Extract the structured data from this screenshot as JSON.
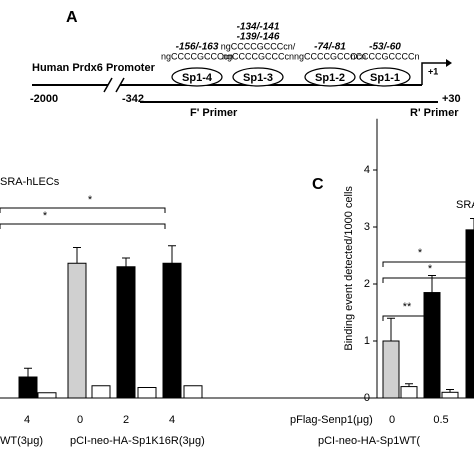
{
  "panel_a": {
    "letter": "A",
    "promoter": "Human Prdx6 Promoter",
    "start": "-2000",
    "break": "-342",
    "sites": [
      {
        "name": "Sp1-4",
        "pos": [
          "-156/-163"
        ],
        "seq": [
          "ngCCCCGCCCcn"
        ]
      },
      {
        "name": "Sp1-3",
        "pos": [
          "-134/-141",
          "-139/-146"
        ],
        "seq": [
          "ngCCCCGCCCcn/",
          "ngCCCCGCCCcn"
        ]
      },
      {
        "name": "Sp1-2",
        "pos": [
          "-74/-81"
        ],
        "seq": [
          "ngCCCCGCCCcn"
        ]
      },
      {
        "name": "Sp1-1",
        "pos": [
          "-53/-60"
        ],
        "seq": [
          "nCCCCGCCCCn"
        ]
      }
    ],
    "tss": "+1",
    "end": "+30",
    "f_primer": "F' Primer",
    "r_primer": "R' Primer"
  },
  "chart_data": [
    {
      "type": "bar",
      "title": "SRA-hLECs",
      "categories": [
        null,
        "4",
        "0",
        "2",
        "4"
      ],
      "groups": [
        "WT(3μg)",
        "pCI-neo-HA-Sp1K16R(3μg)"
      ],
      "ylim": [
        0,
        4.5
      ],
      "series": [
        {
          "colors": [
            null,
            "#000000",
            "#d0d0d0",
            "#000000",
            "#000000"
          ],
          "values": [
            null,
            0.6,
            3.85,
            3.75,
            3.85
          ],
          "errors": [
            null,
            0.25,
            0.45,
            0.25,
            0.5
          ]
        },
        {
          "color": "#ffffff",
          "values": [
            0.3,
            0.15,
            0.35,
            0.3,
            0.35
          ],
          "errors": [
            null,
            null,
            null,
            null,
            null
          ]
        }
      ],
      "annotations": [
        "*",
        "*"
      ]
    },
    {
      "type": "bar",
      "letter": "C",
      "title": "SRA",
      "ylabel": "Binding event detected/1000 cells",
      "xlabel": "pFlag-Senp1(μg)",
      "categories": [
        "0",
        "0.5",
        null
      ],
      "groups": [
        "pCI-neo-HA-Sp1WT("
      ],
      "ylim": [
        0,
        4.9
      ],
      "yticks": [
        0,
        1,
        2,
        3,
        4
      ],
      "series": [
        {
          "colors": [
            "#d0d0d0",
            "#000000",
            "#000000"
          ],
          "values": [
            1.0,
            1.85,
            2.95
          ],
          "errors": [
            0.4,
            0.3,
            0.2
          ]
        },
        {
          "color": "#ffffff",
          "values": [
            0.2,
            0.1,
            null
          ],
          "errors": [
            0.05,
            0.05,
            null
          ]
        }
      ],
      "annotations": [
        "**",
        "*",
        "*"
      ]
    }
  ]
}
